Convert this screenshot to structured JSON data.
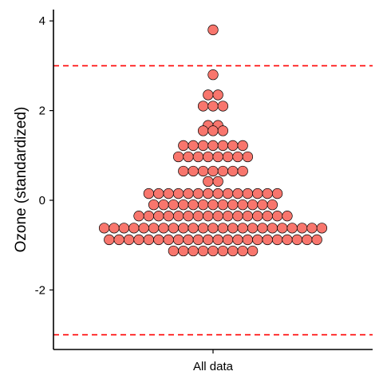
{
  "chart_data": {
    "type": "dotplot",
    "title": "",
    "xlabel": "",
    "ylabel": "Ozone (standardized)",
    "categories": [
      "All data"
    ],
    "ylim": [
      -3.3,
      4.2
    ],
    "yticks": [
      4,
      2,
      0,
      -2
    ],
    "ytick_labels": [
      "4",
      "2",
      "0",
      "-2"
    ],
    "reference_lines": [
      3,
      -3
    ],
    "grid": false,
    "point_color": "#f8766d",
    "point_stroke": "#000000",
    "line_color": "#ff0000",
    "rows": [
      {
        "y": 3.8,
        "count": 1
      },
      {
        "y": 2.8,
        "count": 1
      },
      {
        "y": 2.35,
        "count": 2
      },
      {
        "y": 2.1,
        "count": 3
      },
      {
        "y": 1.67,
        "count": 2
      },
      {
        "y": 1.55,
        "count": 3
      },
      {
        "y": 1.22,
        "count": 7
      },
      {
        "y": 0.97,
        "count": 8
      },
      {
        "y": 0.65,
        "count": 7
      },
      {
        "y": 0.42,
        "count": 2
      },
      {
        "y": 0.15,
        "count": 14
      },
      {
        "y": -0.1,
        "count": 13
      },
      {
        "y": -0.35,
        "count": 16
      },
      {
        "y": -0.62,
        "count": 23
      },
      {
        "y": -0.88,
        "count": 22
      },
      {
        "y": -1.13,
        "count": 9
      }
    ]
  }
}
